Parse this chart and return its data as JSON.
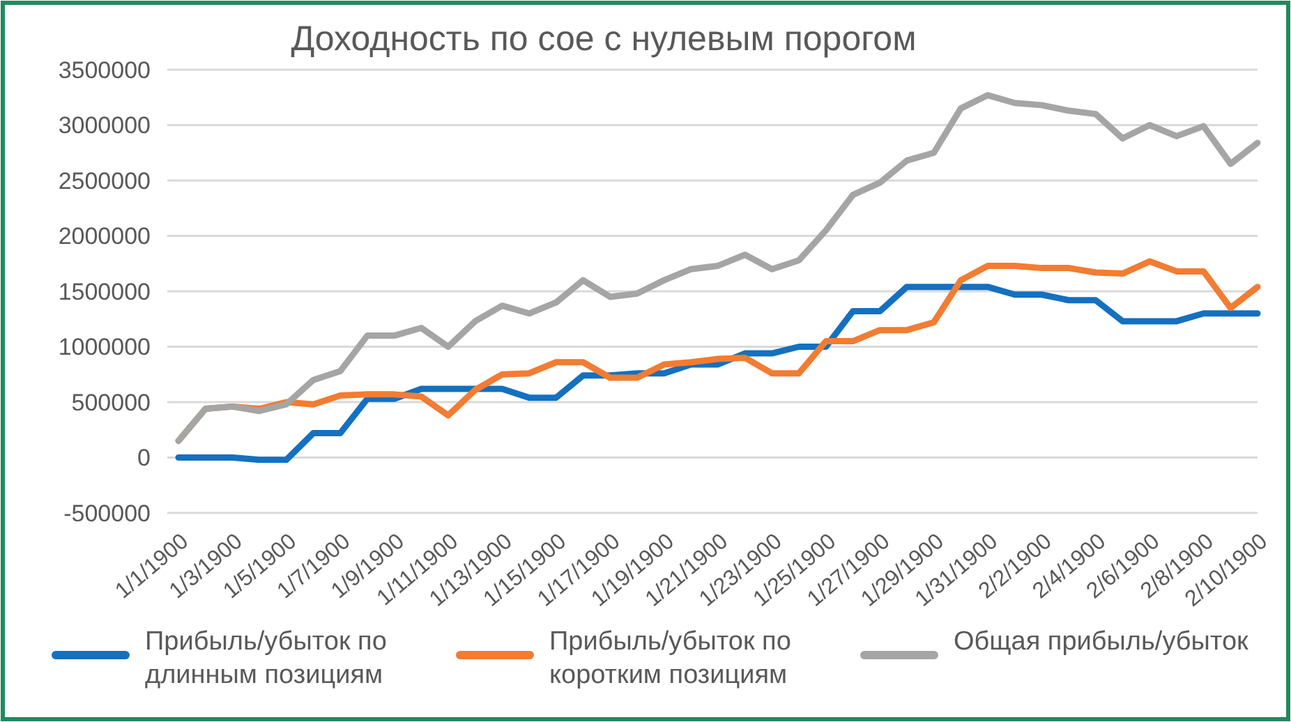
{
  "chart_data": {
    "type": "line",
    "title": "Доходность по сое с нулевым порогом",
    "categories": [
      "1/1/1900",
      null,
      "1/3/1900",
      null,
      "1/5/1900",
      null,
      "1/7/1900",
      null,
      "1/9/1900",
      null,
      "1/11/1900",
      null,
      "1/13/1900",
      null,
      "1/15/1900",
      null,
      "1/17/1900",
      null,
      "1/19/1900",
      null,
      "1/21/1900",
      null,
      "1/23/1900",
      null,
      "1/25/1900",
      null,
      "1/27/1900",
      null,
      "1/29/1900",
      null,
      "1/31/1900",
      null,
      "2/2/1900",
      null,
      "2/4/1900",
      null,
      "2/6/1900",
      null,
      "2/8/1900",
      null,
      "2/10/1900"
    ],
    "series": [
      {
        "name": "Прибыль/убыток по длинным позициям",
        "color": "#1470c0",
        "values": [
          0,
          0,
          0,
          -20000,
          -20000,
          220000,
          220000,
          530000,
          530000,
          620000,
          620000,
          620000,
          620000,
          540000,
          540000,
          740000,
          740000,
          760000,
          760000,
          840000,
          840000,
          940000,
          940000,
          1000000,
          1000000,
          1320000,
          1320000,
          1540000,
          1540000,
          1540000,
          1540000,
          1470000,
          1470000,
          1420000,
          1420000,
          1230000,
          1230000,
          1230000,
          1300000,
          1300000,
          1300000
        ]
      },
      {
        "name": "Прибыль/убыток по коротким позициям",
        "color": "#f27c32",
        "values": [
          150000,
          440000,
          460000,
          440000,
          500000,
          480000,
          560000,
          570000,
          570000,
          550000,
          380000,
          610000,
          750000,
          760000,
          860000,
          860000,
          720000,
          720000,
          840000,
          860000,
          890000,
          900000,
          760000,
          760000,
          1050000,
          1050000,
          1150000,
          1150000,
          1220000,
          1600000,
          1730000,
          1730000,
          1710000,
          1710000,
          1670000,
          1660000,
          1770000,
          1680000,
          1680000,
          1350000,
          1540000
        ]
      },
      {
        "name": "Общая прибыль/убыток",
        "color": "#a5a5a5",
        "values": [
          150000,
          440000,
          460000,
          420000,
          480000,
          700000,
          780000,
          1100000,
          1100000,
          1170000,
          1000000,
          1230000,
          1370000,
          1300000,
          1400000,
          1600000,
          1450000,
          1480000,
          1600000,
          1700000,
          1730000,
          1830000,
          1700000,
          1780000,
          2050000,
          2370000,
          2480000,
          2680000,
          2750000,
          3150000,
          3270000,
          3200000,
          3180000,
          3130000,
          3100000,
          2880000,
          3000000,
          2900000,
          2990000,
          2650000,
          2840000
        ]
      }
    ],
    "ylim": [
      -500000,
      3500000
    ],
    "yticks": [
      -500000,
      0,
      500000,
      1000000,
      1500000,
      2000000,
      2500000,
      3000000,
      3500000
    ],
    "grid": "y",
    "legend": "bottom",
    "marker": "none",
    "line_style": "solid"
  }
}
